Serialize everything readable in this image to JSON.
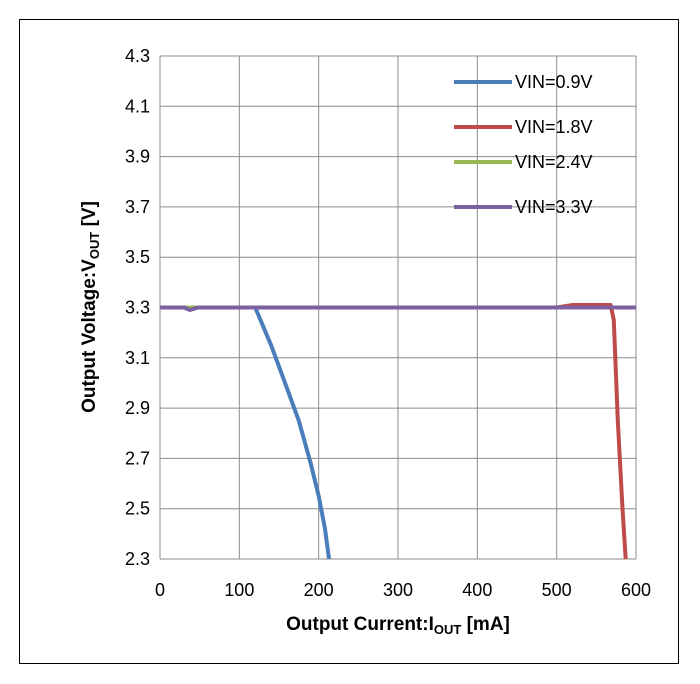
{
  "chart_data": {
    "type": "line",
    "xlabel": {
      "main": "Output Current:I",
      "sub": "OUT",
      "suffix": " [mA]"
    },
    "ylabel": {
      "main": "Output Voltage:V",
      "sub": "OUT",
      "suffix": " [V]"
    },
    "xlim": [
      0,
      600
    ],
    "ylim": [
      2.3,
      4.3
    ],
    "x_ticks": [
      "0",
      "100",
      "200",
      "300",
      "400",
      "500",
      "600"
    ],
    "y_ticks": [
      "4.3",
      "4.1",
      "3.9",
      "3.7",
      "3.5",
      "3.3",
      "3.1",
      "2.9",
      "2.7",
      "2.5",
      "2.3"
    ],
    "grid": true,
    "legend_position": "top-right",
    "series": [
      {
        "name": "VIN=0.9V",
        "color": "#4a7ebb",
        "points": [
          [
            0,
            3.3
          ],
          [
            50,
            3.3
          ],
          [
            100,
            3.3
          ],
          [
            120,
            3.3
          ],
          [
            140,
            3.15
          ],
          [
            160,
            2.98
          ],
          [
            175,
            2.85
          ],
          [
            190,
            2.68
          ],
          [
            200,
            2.55
          ],
          [
            208,
            2.42
          ],
          [
            213,
            2.3
          ]
        ]
      },
      {
        "name": "VIN=1.8V",
        "color": "#be4b48",
        "points": [
          [
            0,
            3.3
          ],
          [
            100,
            3.3
          ],
          [
            300,
            3.3
          ],
          [
            500,
            3.3
          ],
          [
            520,
            3.31
          ],
          [
            568,
            3.31
          ],
          [
            572,
            3.25
          ],
          [
            577,
            2.85
          ],
          [
            583,
            2.5
          ],
          [
            587,
            2.3
          ]
        ]
      },
      {
        "name": "VIN=2.4V",
        "color": "#98b954",
        "points": [
          [
            0,
            3.3
          ],
          [
            30,
            3.3
          ],
          [
            100,
            3.3
          ],
          [
            300,
            3.3
          ],
          [
            500,
            3.3
          ],
          [
            600,
            3.3
          ]
        ]
      },
      {
        "name": "VIN=3.3V",
        "color": "#7d60a0",
        "points": [
          [
            0,
            3.3
          ],
          [
            30,
            3.3
          ],
          [
            38,
            3.29
          ],
          [
            48,
            3.3
          ],
          [
            100,
            3.3
          ],
          [
            300,
            3.3
          ],
          [
            500,
            3.3
          ],
          [
            600,
            3.3
          ]
        ]
      }
    ]
  }
}
